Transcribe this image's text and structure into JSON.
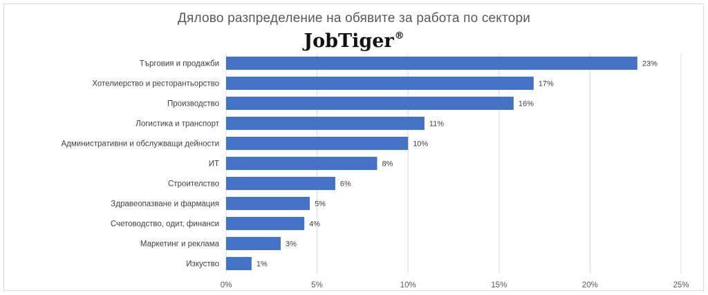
{
  "chart_data": {
    "type": "bar",
    "orientation": "horizontal",
    "title": "Дялово разпределение на обявите за работа по сектори",
    "logo_text": "JobTiger®",
    "categories": [
      "Търговия и продажби",
      "Хотелиерство и ресторантьорство",
      "Производство",
      "Логистика и транспорт",
      "Административни и обслужващи дейности",
      "ИТ",
      "Строителство",
      "Здравеопазване и фармация",
      "Счетоводство, одит, финанси",
      "Маркетинг и реклама",
      "Изкуство"
    ],
    "values": [
      22.6,
      16.9,
      15.8,
      10.9,
      10.0,
      8.3,
      6.0,
      4.6,
      4.3,
      3.0,
      1.4
    ],
    "data_labels": [
      "23%",
      "17%",
      "16%",
      "11%",
      "10%",
      "8%",
      "6%",
      "5%",
      "4%",
      "3%",
      "1%"
    ],
    "xlim": [
      0,
      25
    ],
    "x_ticks": [
      0,
      5,
      10,
      15,
      20,
      25
    ],
    "x_tick_labels": [
      "0%",
      "5%",
      "10%",
      "15%",
      "20%",
      "25%"
    ],
    "xlabel": "",
    "ylabel": "",
    "grid": "vertical",
    "legend": "none",
    "bar_color": "#4472C4"
  }
}
